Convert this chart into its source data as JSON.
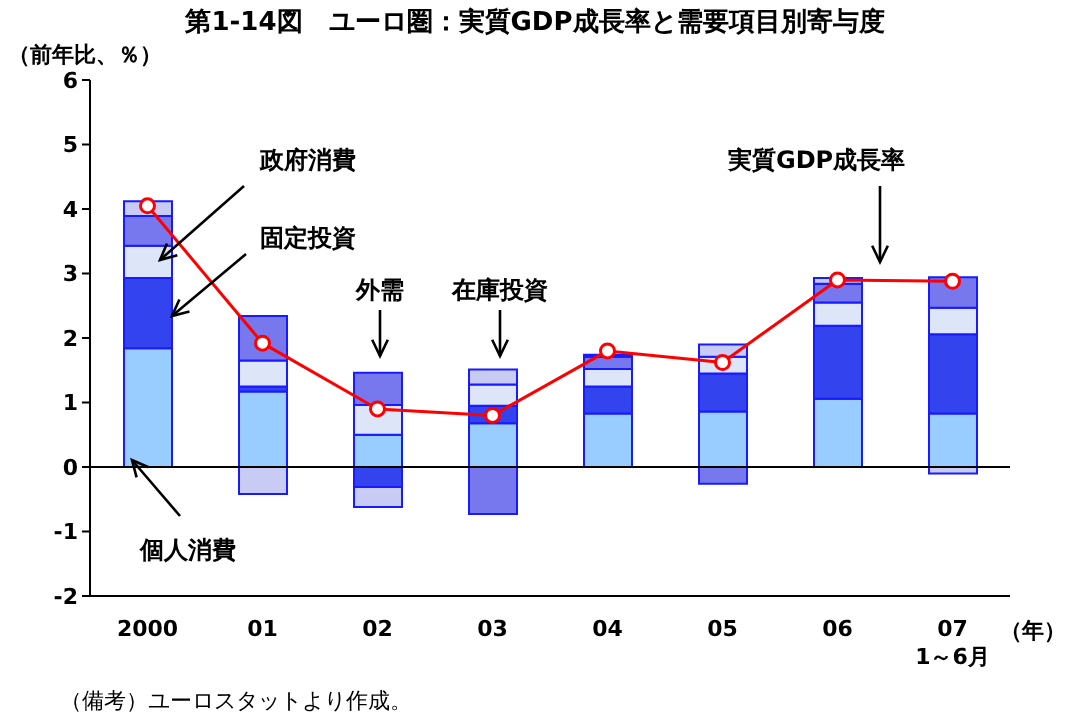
{
  "chart_data": {
    "type": "bar",
    "stacked": true,
    "title": "第1-14図　ユーロ圏：実質GDP成長率と需要項目別寄与度",
    "ylabel": "（前年比、％）",
    "xlabel": "（年）",
    "categories": [
      "2000",
      "01",
      "02",
      "03",
      "04",
      "05",
      "06",
      "07\n1～6月"
    ],
    "series": [
      {
        "name": "個人消費",
        "color": "#99ccff",
        "values": [
          1.84,
          1.17,
          0.5,
          0.68,
          0.83,
          0.86,
          1.06,
          0.83
        ]
      },
      {
        "name": "固定投資",
        "color": "#3344ee",
        "values": [
          1.09,
          0.08,
          -0.31,
          0.27,
          0.42,
          0.59,
          1.13,
          1.23
        ]
      },
      {
        "name": "政府消費",
        "color": "#dde6f8",
        "values": [
          0.5,
          0.4,
          0.46,
          0.33,
          0.27,
          0.26,
          0.36,
          0.41
        ]
      },
      {
        "name": "外需",
        "color": "#7777ee",
        "values": [
          0.46,
          0.69,
          0.5,
          -0.73,
          0.19,
          -0.26,
          0.29,
          0.47
        ]
      },
      {
        "name": "在庫投資",
        "color": "#c8ccf4",
        "values": [
          0.23,
          -0.42,
          -0.31,
          0.23,
          0.03,
          0.19,
          0.09,
          -0.1
        ]
      },
      {
        "name": "実質GDP成長率",
        "type": "line",
        "color": "#ff0000",
        "marker": "circle",
        "values": [
          4.05,
          1.92,
          0.9,
          0.8,
          1.8,
          1.62,
          2.9,
          2.88
        ]
      }
    ],
    "ylim": [
      -2,
      6
    ],
    "yticks": [
      -2,
      -1,
      0,
      1,
      2,
      3,
      4,
      5,
      6
    ],
    "grid": false,
    "ref_lines": [
      {
        "axis": "y",
        "value": 0,
        "color": "#000000"
      }
    ],
    "annotations": [
      "（備考）ユーロスタットより作成。"
    ]
  }
}
